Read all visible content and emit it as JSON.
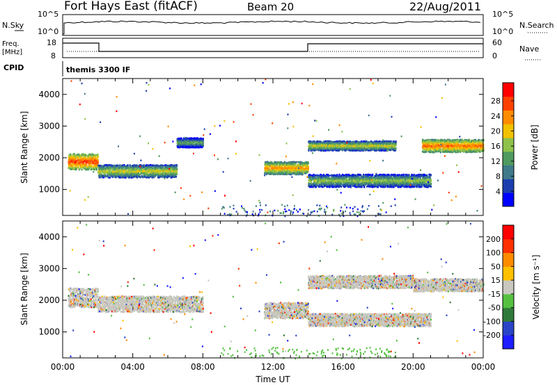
{
  "header": {
    "station": "Fort Hays East (fitACF)",
    "beam": "Beam 20",
    "date": "22/Aug/2011"
  },
  "panels": {
    "noise": {
      "left_label": "N.Sky",
      "right_label": "N.Search",
      "tick_hi": "10^5",
      "tick_lo": "10^0"
    },
    "freq": {
      "left_label_1": "Freq.",
      "left_label_2": "[MHz]",
      "left_tick_hi": "18",
      "left_tick_lo": "8",
      "right_label": "Nave",
      "right_tick_hi": "60",
      "right_tick_lo": "0"
    },
    "cpid": {
      "label": "CPID",
      "value": "themis 3300 IF"
    }
  },
  "colors": {
    "power_scale": [
      "#0000ff",
      "#1c3fb0",
      "#3f7a8a",
      "#4f9a60",
      "#8fc24a",
      "#f2c200",
      "#ff8c00",
      "#ff4000",
      "#ff0000"
    ],
    "velocity_scale": [
      "#1c1cff",
      "#2a44c8",
      "#2f7a3a",
      "#55c040",
      "#c8c8c0",
      "#ffc000",
      "#ff8c00",
      "#ff3000",
      "#ff0000"
    ]
  },
  "chart_data": [
    {
      "type": "heatmap",
      "title": "",
      "xlabel": "",
      "ylabel": "Slant Range [km]",
      "x_ticks": [
        "00:00",
        "04:00",
        "08:00",
        "12:00",
        "16:00",
        "20:00",
        "00:00"
      ],
      "y_ticks": [
        "1000",
        "2000",
        "3000",
        "4000"
      ],
      "ylim": [
        180,
        4500
      ],
      "colorbar": {
        "label": "Power [dB]",
        "ticks": [
          "4",
          "8",
          "12",
          "16",
          "20",
          "24",
          "28"
        ],
        "range": [
          0,
          30
        ]
      },
      "features": [
        {
          "t_start": 0.3,
          "t_end": 2.0,
          "range_center": 1900,
          "width": 500,
          "value": 26
        },
        {
          "t_start": 2.0,
          "t_end": 6.5,
          "range_center": 1600,
          "width": 400,
          "value": 18
        },
        {
          "t_start": 6.5,
          "t_end": 8.0,
          "range_center": 2500,
          "width": 300,
          "value": 14
        },
        {
          "t_start": 11.5,
          "t_end": 14.0,
          "range_center": 1700,
          "width": 400,
          "value": 22
        },
        {
          "t_start": 14.0,
          "t_end": 21.0,
          "range_center": 1300,
          "width": 400,
          "value": 16
        },
        {
          "t_start": 14.0,
          "t_end": 19.0,
          "range_center": 2400,
          "width": 300,
          "value": 18
        },
        {
          "t_start": 20.5,
          "t_end": 24.0,
          "range_center": 2400,
          "width": 400,
          "value": 24
        }
      ]
    },
    {
      "type": "heatmap",
      "title": "",
      "xlabel": "Time UT",
      "ylabel": "Slant Range [km]",
      "x_ticks": [
        "00:00",
        "04:00",
        "08:00",
        "12:00",
        "16:00",
        "20:00",
        "00:00"
      ],
      "y_ticks": [
        "1000",
        "2000",
        "3000",
        "4000"
      ],
      "ylim": [
        180,
        4500
      ],
      "colorbar": {
        "label": "Velocity [m s⁻¹]",
        "ticks": [
          "200",
          "100",
          "50",
          "15",
          "-15",
          "-50",
          "-100",
          "-200"
        ],
        "range": [
          -250,
          250
        ]
      },
      "features": [
        {
          "t_start": 0.3,
          "t_end": 2.0,
          "range_center": 2100,
          "width": 600,
          "value": 0
        },
        {
          "t_start": 2.0,
          "t_end": 8.0,
          "range_center": 1900,
          "width": 500,
          "value": 0
        },
        {
          "t_start": 11.5,
          "t_end": 14.0,
          "range_center": 1700,
          "width": 500,
          "value": 0
        },
        {
          "t_start": 14.0,
          "t_end": 21.0,
          "range_center": 1400,
          "width": 400,
          "value": 0
        },
        {
          "t_start": 14.0,
          "t_end": 20.0,
          "range_center": 2600,
          "width": 400,
          "value": 0
        },
        {
          "t_start": 20.0,
          "t_end": 24.0,
          "range_center": 2500,
          "width": 400,
          "value": 0
        }
      ]
    }
  ]
}
